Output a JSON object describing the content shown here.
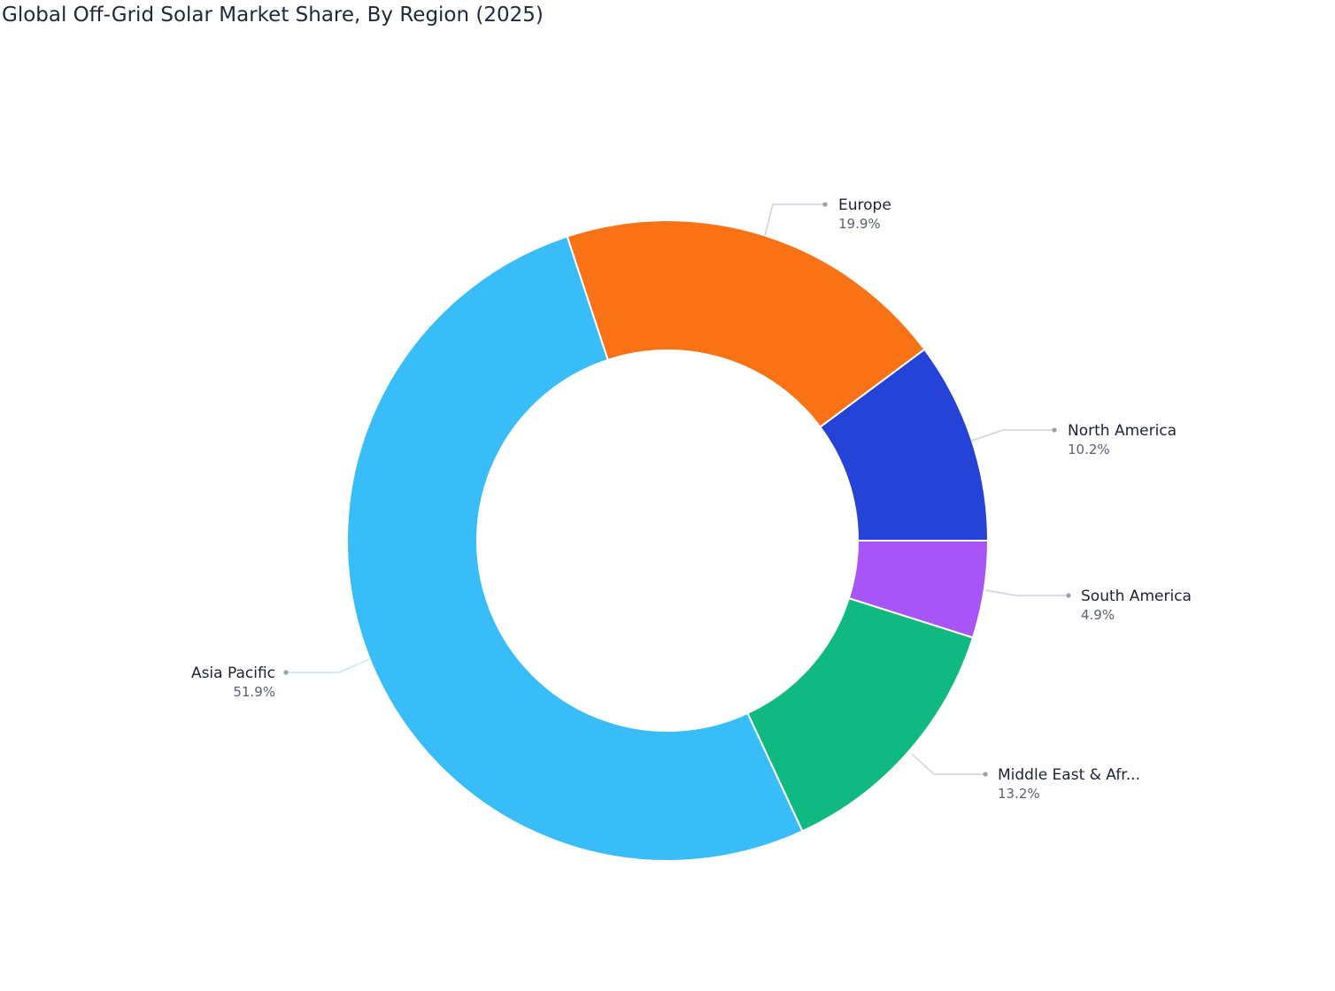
{
  "chart_data": {
    "type": "pie",
    "donut": true,
    "title": "Global Off-Grid Solar Market Share, By Region (2025)",
    "categories": [
      "North America",
      "Europe",
      "Asia Pacific",
      "Middle East & Afr...",
      "South America"
    ],
    "values": [
      10.2,
      19.9,
      51.9,
      13.2,
      4.9
    ],
    "labels": [
      "10.2%",
      "19.9%",
      "51.9%",
      "13.2%",
      "4.9%"
    ],
    "colors": [
      "#2643d8",
      "#f97316",
      "#38bdf8",
      "#10b981",
      "#a855f7"
    ],
    "legend": "none"
  }
}
